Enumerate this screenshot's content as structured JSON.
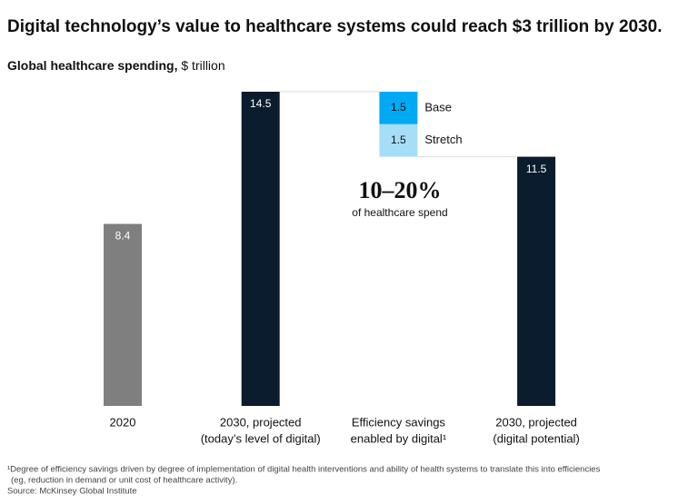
{
  "chart_data": {
    "type": "waterfall",
    "title": "Digital technology’s value to healthcare systems could reach $3 trillion by 2030.",
    "y_label": "Global healthcare spending,",
    "unit": "$ trillion",
    "categories": [
      [
        "2020"
      ],
      [
        "2030, projected",
        "(today’s level of digital)"
      ],
      [
        "Efficiency savings",
        "enabled by digital¹"
      ],
      [
        "2030, projected",
        "(digital potential)"
      ]
    ],
    "values": [
      8.4,
      14.5,
      null,
      11.5
    ],
    "colors": [
      "#7f7f7f",
      "#0a1c2d",
      null,
      "#0a1c2d"
    ],
    "savings": [
      {
        "name": "Base",
        "value": 1.5,
        "color": "#00a9f4"
      },
      {
        "name": "Stretch",
        "value": 1.5,
        "color": "#a6defa"
      }
    ],
    "annotation": {
      "headline": "10–20%",
      "text": "of healthcare spend"
    },
    "footnotes": [
      "¹Degree of efficiency savings driven by degree of implementation of digital health interventions and ability of health systems to translate this into efficiencies",
      "(eg, reduction in demand or unit cost of healthcare activity).",
      "Source: McKinsey Global Institute"
    ]
  }
}
